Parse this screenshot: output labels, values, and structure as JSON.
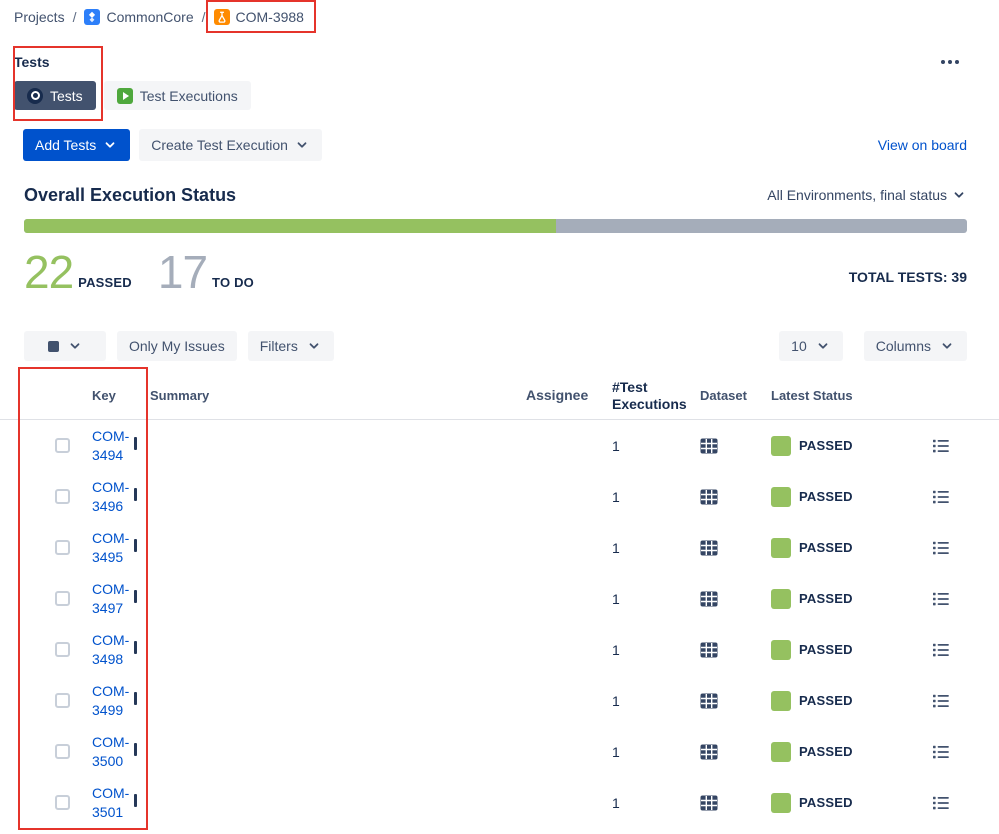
{
  "colors": {
    "annotation": "#E5342B",
    "accent_blue": "#0052CC",
    "status_green": "#95C160",
    "todo_gray": "#A5ADBA"
  },
  "icons": {
    "chevron_down": "v",
    "more_options": "...",
    "project_avatar": "blue-square-avatar",
    "test_issue_type": "orange-flask-square",
    "tests_tab": "circle-ring",
    "test_executions_tab": "green-play-square",
    "bulk_select": "filled-square",
    "dataset": "table-grid",
    "execution_details": "detailed-list"
  },
  "breadcrumb": {
    "separator": "/",
    "projects_label": "Projects",
    "project_label": "CommonCore",
    "issue_label": "COM-3988"
  },
  "header": {
    "title": "Tests"
  },
  "tabs": {
    "tests_label": "Tests",
    "test_executions_label": "Test Executions"
  },
  "toolbar": {
    "add_tests_label": "Add Tests",
    "create_test_execution_label": "Create Test Execution",
    "view_on_board_label": "View on board"
  },
  "execution_status": {
    "title": "Overall Execution Status",
    "environment_filter_label": "All Environments, final status",
    "passed_count": "22",
    "passed_label": "PASSED",
    "todo_count": "17",
    "todo_label": "TO DO",
    "total_tests_label": "TOTAL TESTS: 39",
    "passed_percent": 56.4
  },
  "filter_bar": {
    "only_my_issues_label": "Only My Issues",
    "filters_label": "Filters",
    "page_size_value": "10",
    "columns_label": "Columns"
  },
  "table": {
    "headers": [
      "Key",
      "Summary",
      "Assignee",
      "#Test Executions",
      "Dataset",
      "Latest Status"
    ],
    "rows": [
      {
        "key": "COM-3494",
        "summary": "",
        "assignee": "",
        "executions": "1",
        "status": "PASSED"
      },
      {
        "key": "COM-3496",
        "summary": "",
        "assignee": "",
        "executions": "1",
        "status": "PASSED"
      },
      {
        "key": "COM-3495",
        "summary": "",
        "assignee": "",
        "executions": "1",
        "status": "PASSED"
      },
      {
        "key": "COM-3497",
        "summary": "",
        "assignee": "",
        "executions": "1",
        "status": "PASSED"
      },
      {
        "key": "COM-3498",
        "summary": "",
        "assignee": "",
        "executions": "1",
        "status": "PASSED"
      },
      {
        "key": "COM-3499",
        "summary": "",
        "assignee": "",
        "executions": "1",
        "status": "PASSED"
      },
      {
        "key": "COM-3500",
        "summary": "",
        "assignee": "",
        "executions": "1",
        "status": "PASSED"
      },
      {
        "key": "COM-3501",
        "summary": "",
        "assignee": "",
        "executions": "1",
        "status": "PASSED"
      }
    ]
  },
  "annotations": [
    {
      "targets": [
        "breadcrumb-item-issue"
      ],
      "pad": [
        9,
        12,
        8,
        8
      ]
    },
    {
      "targets": [
        "page-title",
        "tab-tests"
      ],
      "pad": [
        8,
        7,
        11,
        1
      ]
    },
    {
      "targets": [
        "table-header-cell-key",
        "row-7-checkbox",
        "row-7-key-link"
      ],
      "pad": [
        20,
        14,
        8,
        37
      ]
    }
  ]
}
